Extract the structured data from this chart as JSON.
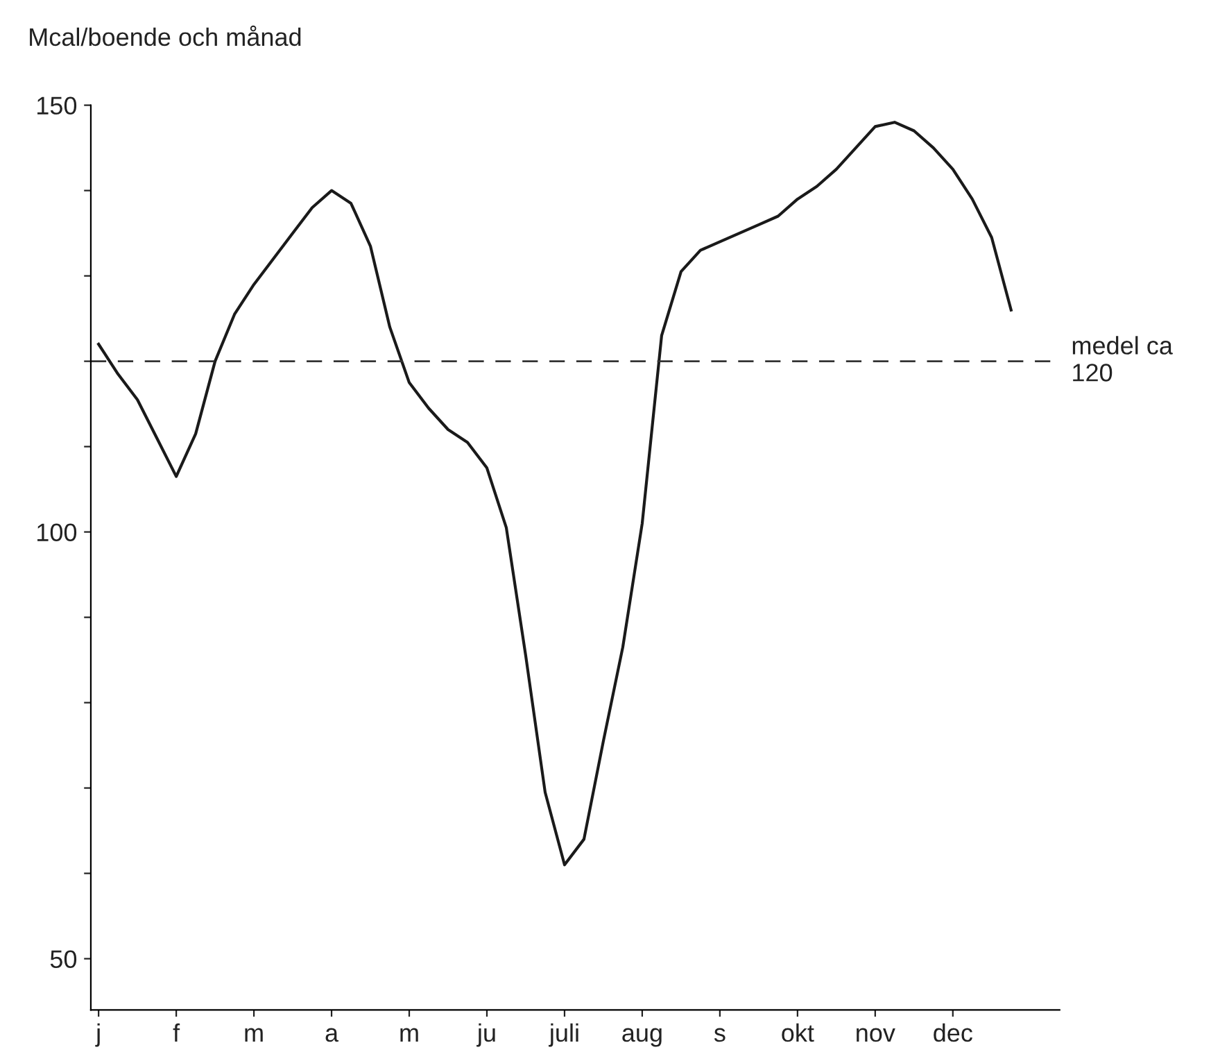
{
  "chart_data": {
    "type": "line",
    "ylabel": "Mcal/boende och månad",
    "categories": [
      "j",
      null,
      null,
      null,
      "f",
      null,
      null,
      null,
      "m",
      null,
      null,
      null,
      "a",
      null,
      null,
      null,
      "m",
      null,
      null,
      null,
      "ju",
      null,
      null,
      null,
      "juli",
      null,
      null,
      null,
      "aug",
      null,
      null,
      null,
      "s",
      null,
      null,
      null,
      "okt",
      null,
      null,
      null,
      "nov",
      null,
      null,
      null,
      "dec",
      null,
      null,
      null
    ],
    "series": [
      {
        "color": "#1a1a1a",
        "values": [
          122,
          118.5,
          115.5,
          111,
          106.5,
          111.5,
          120,
          125.5,
          129,
          132,
          135,
          138,
          140,
          138.5,
          133.5,
          124,
          117.5,
          114.5,
          112,
          110.5,
          107.5,
          100.5,
          85.5,
          69.5,
          61,
          64,
          75.5,
          86.5,
          101,
          123,
          130.5,
          133,
          134,
          135,
          136,
          137,
          139,
          140.5,
          142.5,
          145,
          147.5,
          148,
          147,
          145,
          142.5,
          139,
          134.5,
          126
        ]
      }
    ],
    "ylim": [
      44,
      150
    ],
    "yticks": [
      50,
      {
        "value": 60,
        "label": null
      },
      {
        "value": 70,
        "label": null
      },
      {
        "value": 80,
        "label": null
      },
      {
        "value": 90,
        "label": null
      },
      100,
      {
        "value": 110,
        "label": null
      },
      {
        "value": 120,
        "label": null
      },
      {
        "value": 130,
        "label": null
      },
      {
        "value": 140,
        "label": null
      },
      150
    ],
    "ref_lines": [
      {
        "axis": "y",
        "value": 120,
        "label": "medel ca\n120",
        "color": "#333333",
        "line_style": "dashed"
      }
    ],
    "grid": false,
    "legend": false,
    "marker": "none",
    "line_style": "solid"
  }
}
